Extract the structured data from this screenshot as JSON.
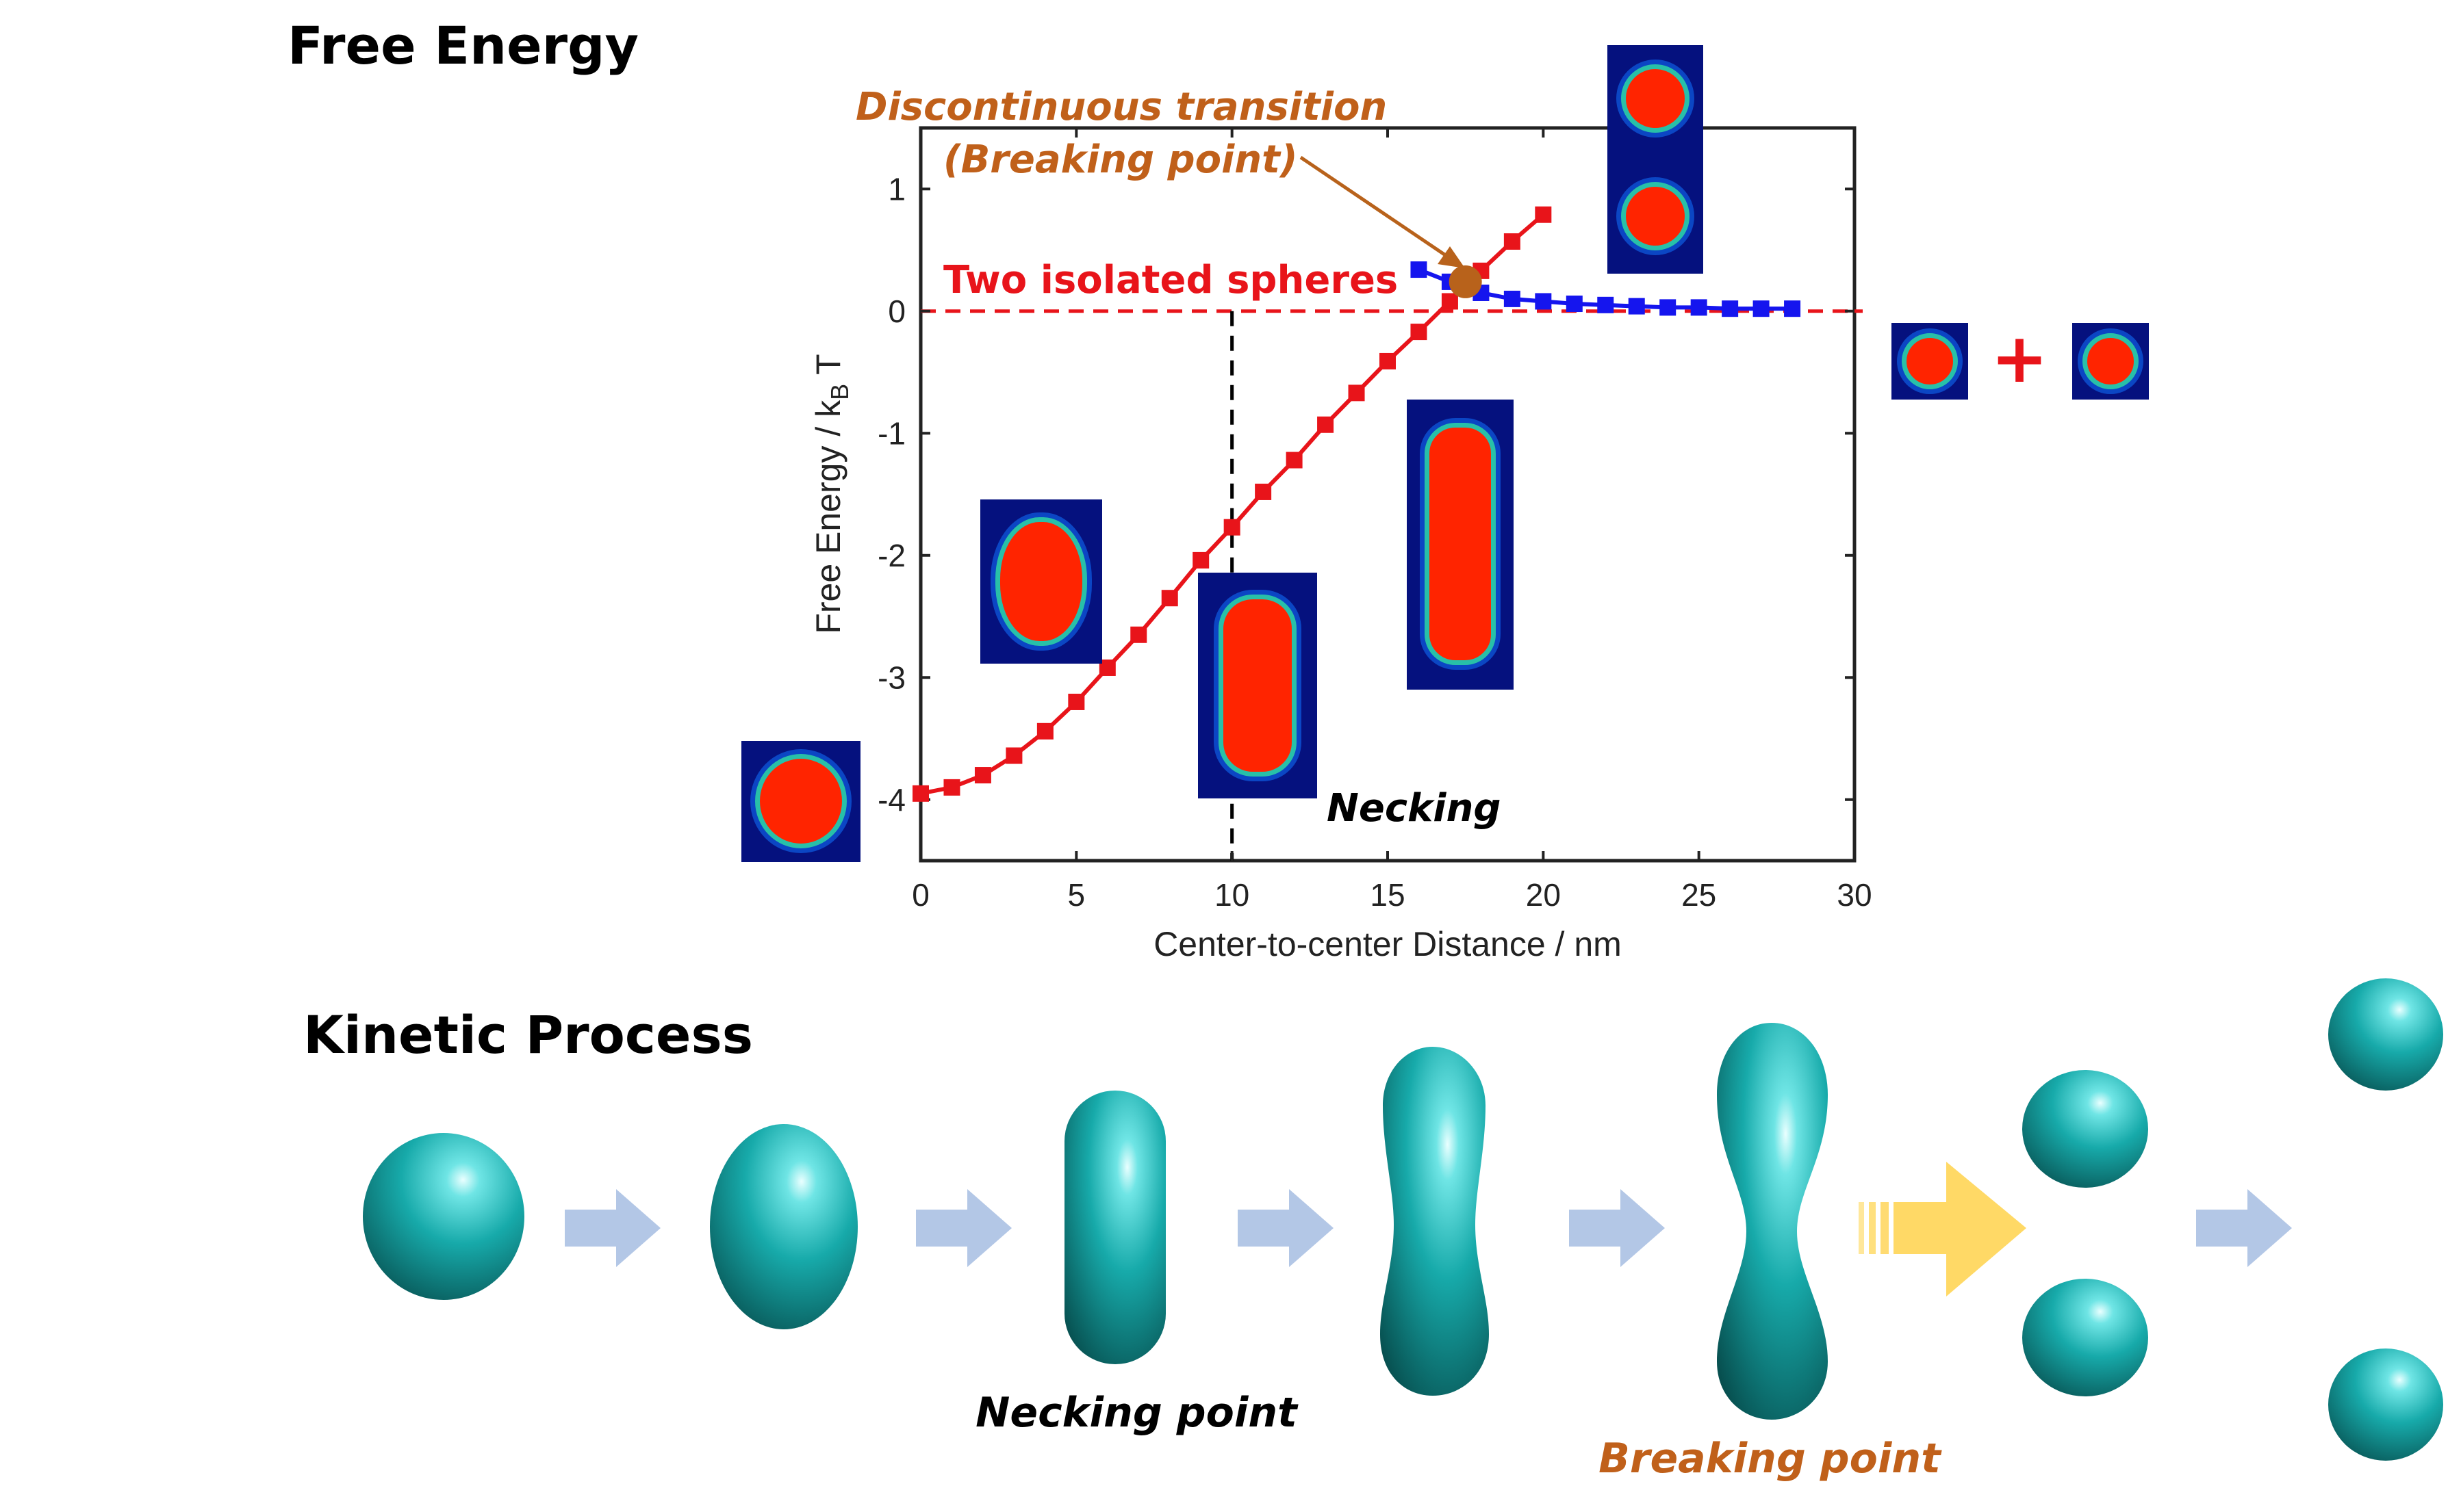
{
  "titles": {
    "free_energy": "Free Energy",
    "kinetic": "Kinetic Process"
  },
  "annotations": {
    "discontinuous": "Discontinuous transition",
    "breaking_paren": "(Breaking point)",
    "two_spheres": "Two isolated spheres",
    "necking": "Necking",
    "necking_point": "Necking point",
    "breaking_point": "Breaking point",
    "plus": "+"
  },
  "colors": {
    "red_series": "#e8141a",
    "blue_series": "#1515ee",
    "annotation_brown": "#c0601a",
    "sim_background": "#05117e",
    "sim_core": "#ff2400",
    "arrow_blue": "#b3c7e6",
    "arrow_gold": "#ffd966",
    "shape_teal": "#14a9a9"
  },
  "chart_data": {
    "type": "line",
    "title": "",
    "xlabel": "Center-to-center Distance / nm",
    "ylabel": "Free Energy / k_B T",
    "xlim": [
      0,
      30
    ],
    "ylim": [
      -4.5,
      1.5
    ],
    "xticks": [
      0,
      5,
      10,
      15,
      20,
      25,
      30
    ],
    "yticks": [
      -4,
      -3,
      -2,
      -1,
      0,
      1
    ],
    "grid": false,
    "series": [
      {
        "color": "#e8141a",
        "marker": "square",
        "x": [
          0,
          1,
          2,
          3,
          4,
          5,
          6,
          7,
          8,
          9,
          10,
          11,
          12,
          13,
          14,
          15,
          16,
          17,
          18,
          19,
          20
        ],
        "y": [
          -3.95,
          -3.9,
          -3.8,
          -3.64,
          -3.44,
          -3.2,
          -2.92,
          -2.65,
          -2.35,
          -2.04,
          -1.77,
          -1.48,
          -1.22,
          -0.93,
          -0.67,
          -0.41,
          -0.17,
          0.08,
          0.33,
          0.57,
          0.79
        ]
      },
      {
        "color": "#1515ee",
        "marker": "square",
        "x": [
          16,
          17,
          18,
          19,
          20,
          21,
          22,
          23,
          24,
          25,
          26,
          27,
          28
        ],
        "y": [
          0.34,
          0.24,
          0.15,
          0.1,
          0.08,
          0.06,
          0.05,
          0.04,
          0.03,
          0.03,
          0.02,
          0.02,
          0.02
        ]
      }
    ],
    "reference_lines": [
      {
        "orientation": "horizontal",
        "value": 0,
        "color": "#e8141a",
        "style": "dashed"
      },
      {
        "orientation": "vertical",
        "value": 10,
        "color": "#000000",
        "style": "dashed"
      }
    ],
    "transition_point": {
      "x": 17.5,
      "y": 0.24,
      "color": "#b8621b"
    }
  }
}
